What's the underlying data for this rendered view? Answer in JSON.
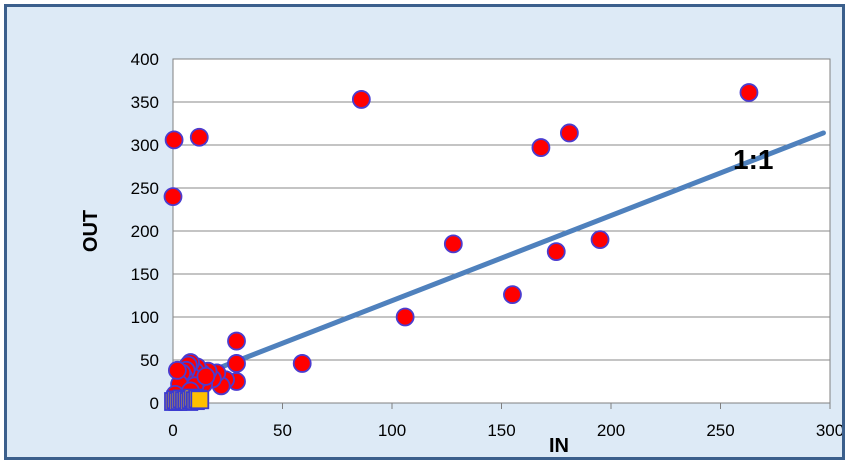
{
  "chart_data": {
    "type": "scatter",
    "xlabel": "IN",
    "ylabel": "OUT",
    "xlim": [
      0,
      300
    ],
    "ylim": [
      0,
      400
    ],
    "x_ticks": [
      "0",
      "50",
      "100",
      "150",
      "200",
      "250",
      "300"
    ],
    "y_ticks": [
      "0",
      "50",
      "100",
      "150",
      "200",
      "250",
      "300",
      "350",
      "400"
    ],
    "grid": "horizontal",
    "legend": "none",
    "colors": {
      "frame": "#3b5f8c",
      "background": "#ddeaf6",
      "plot_area": "#ffffff",
      "circle_fill": "#ff0000",
      "circle_stroke": "#4b3ccf",
      "square_fill": "#ffc000",
      "square_stroke": "#3a3ad0",
      "line": "#4f81bd"
    },
    "series": [
      {
        "marker": "circle",
        "points": [
          [
            0.5,
            306
          ],
          [
            0,
            240
          ],
          [
            12,
            309
          ],
          [
            86,
            353
          ],
          [
            263,
            361
          ],
          [
            168,
            297
          ],
          [
            181,
            314
          ],
          [
            128,
            185
          ],
          [
            195,
            190
          ],
          [
            175,
            176
          ],
          [
            155,
            126
          ],
          [
            106,
            100
          ],
          [
            59,
            46
          ],
          [
            29,
            72
          ],
          [
            29,
            46
          ],
          [
            29,
            25
          ],
          [
            24,
            27
          ],
          [
            22,
            20
          ],
          [
            20,
            35
          ],
          [
            18,
            28
          ],
          [
            16,
            37
          ],
          [
            14,
            22
          ],
          [
            13,
            35
          ],
          [
            12,
            28
          ],
          [
            11,
            42
          ],
          [
            10,
            37
          ],
          [
            9,
            30
          ],
          [
            8,
            47
          ],
          [
            7,
            44
          ],
          [
            6,
            38
          ],
          [
            5,
            30
          ],
          [
            4,
            35
          ],
          [
            3,
            22
          ],
          [
            2,
            38
          ],
          [
            1,
            10
          ],
          [
            10,
            20
          ],
          [
            15,
            31
          ],
          [
            8,
            14
          ]
        ]
      },
      {
        "marker": "square",
        "points": [
          [
            0,
            0
          ],
          [
            1,
            2
          ],
          [
            2,
            0
          ],
          [
            3,
            1
          ],
          [
            4,
            3
          ],
          [
            5,
            1
          ],
          [
            6,
            2
          ],
          [
            7,
            0
          ],
          [
            8,
            2
          ],
          [
            9,
            4
          ],
          [
            10,
            1
          ],
          [
            11,
            3
          ],
          [
            12,
            2
          ]
        ]
      }
    ],
    "reference_line": {
      "label": "1:1",
      "points": [
        [
          0,
          20
        ],
        [
          297,
          314
        ]
      ]
    }
  }
}
